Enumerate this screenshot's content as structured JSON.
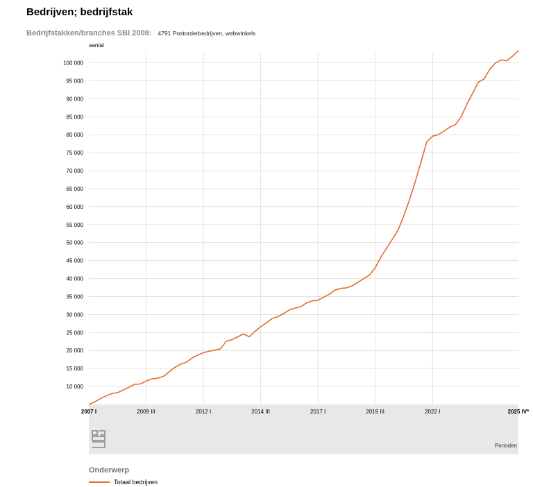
{
  "title": "Bedrijven; bedrijfstak",
  "filter": {
    "label": "Bedrijfstakken/branches SBI 2008:",
    "value": "4791 Postorderbedrijven, webwinkels"
  },
  "legend": {
    "title": "Onderwerp",
    "items": [
      {
        "label": "Totaal bedrijven",
        "color": "#e8692e"
      }
    ]
  },
  "chart_data": {
    "type": "line",
    "ylabel": "aantal",
    "xlabel": "Perioden",
    "ylim": [
      5000,
      103000
    ],
    "grid": true,
    "y_ticks": [
      10000,
      15000,
      20000,
      25000,
      30000,
      35000,
      40000,
      45000,
      50000,
      55000,
      60000,
      65000,
      70000,
      75000,
      80000,
      85000,
      90000,
      95000,
      100000
    ],
    "y_tick_labels": [
      "10 000",
      "15 000",
      "20 000",
      "25 000",
      "30 000",
      "35 000",
      "40 000",
      "45 000",
      "50 000",
      "55 000",
      "60 000",
      "65 000",
      "70 000",
      "75 000",
      "80 000",
      "85 000",
      "90 000",
      "95 000",
      "100 000"
    ],
    "x_ticks": [
      {
        "label": "2007 I",
        "index": 0,
        "bold": true
      },
      {
        "label": "2009 III",
        "index": 10,
        "bold": false
      },
      {
        "label": "2012 I",
        "index": 20,
        "bold": false
      },
      {
        "label": "2014 III",
        "index": 30,
        "bold": false
      },
      {
        "label": "2017 I",
        "index": 40,
        "bold": false
      },
      {
        "label": "2019 III",
        "index": 50,
        "bold": false
      },
      {
        "label": "2022 I",
        "index": 60,
        "bold": false
      },
      {
        "label": "2025 IV*",
        "index": 75,
        "bold": true
      }
    ],
    "series": [
      {
        "name": "Totaal bedrijven",
        "color": "#e8692e",
        "values": [
          5000,
          5700,
          6600,
          7400,
          8000,
          8300,
          9000,
          9800,
          10600,
          10700,
          11500,
          12100,
          12300,
          12800,
          14000,
          15300,
          16200,
          16700,
          17900,
          18700,
          19400,
          19800,
          20100,
          20500,
          22600,
          23000,
          23800,
          24600,
          23800,
          25300,
          26600,
          27700,
          28900,
          29400,
          30300,
          31300,
          31800,
          32200,
          33200,
          33800,
          34000,
          34800,
          35700,
          36800,
          37300,
          37400,
          38000,
          39000,
          40000,
          41000,
          43000,
          46000,
          48500,
          51000,
          53500,
          57500,
          62000,
          67000,
          72500,
          78000,
          79600,
          80000,
          81000,
          82100,
          82800,
          85000,
          88500,
          91500,
          94600,
          95500,
          98200,
          100000,
          100800,
          100600,
          101900,
          103400
        ]
      }
    ]
  }
}
